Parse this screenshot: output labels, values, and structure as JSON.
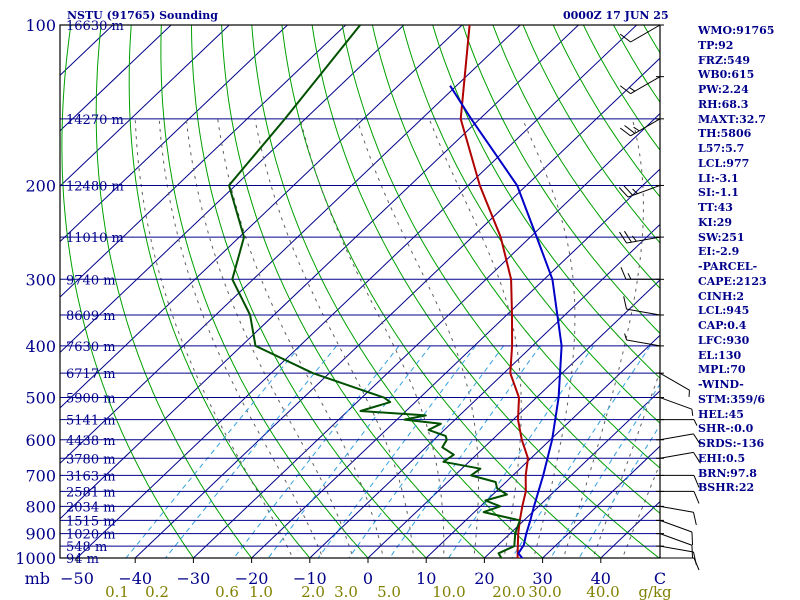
{
  "header": {
    "station": "NSTU (91765) Sounding",
    "time": "0000Z 17 JUN 25"
  },
  "indices": [
    "WMO:91765",
    "TP:92",
    "FRZ:549",
    "WB0:615",
    "PW:2.24",
    "RH:68.3",
    "MAXT:32.7",
    "TH:5806",
    "L57:5.7",
    "LCL:977",
    "LI:-3.1",
    "SI:-1.1",
    "TT:43",
    "KI:29",
    "SW:251",
    "EI:-2.9",
    "-PARCEL-",
    "CAPE:2123",
    "CINH:2",
    "LCL:945",
    "CAP:0.4",
    "LFC:930",
    "EL:130",
    "MPL:70",
    "-WIND-",
    "STM:359/6",
    "HEL:45",
    "SHR-:0.0",
    "SRDS:-136",
    "EHI:0.5",
    "BRN:97.8",
    "BSHR:22"
  ],
  "colors": {
    "isobar": "#00008b",
    "temperature": "#b00000",
    "dewpoint": "#005000",
    "parcel": "#0000c8",
    "dry_adiabat": "#00a000",
    "mixing_ratio": "#33a0e0",
    "moist_adiabat": "#606060",
    "axis_label": "#808000"
  },
  "chart_data": {
    "type": "line",
    "diagram": "skew-T log-p",
    "y_unit": "mb",
    "x_unit": "°C",
    "pressure_levels": [
      100,
      200,
      300,
      400,
      500,
      600,
      700,
      800,
      900,
      1000
    ],
    "x_ticks": [
      -50,
      -40,
      -30,
      -20,
      -10,
      0,
      10,
      20,
      30,
      40
    ],
    "x_axis_end_label": "C",
    "mixing_ratio_labels": [
      "0.1",
      "0.2",
      "0.6",
      "1.0",
      "2.0",
      "3.0",
      "5.0",
      "10.0",
      "20.0",
      "30.0",
      "40.0"
    ],
    "mixing_ratio_unit": "g/kg",
    "heights": [
      {
        "p": 100,
        "label": "16630 m"
      },
      {
        "p": 150,
        "label": "14270 m"
      },
      {
        "p": 200,
        "label": "12480 m"
      },
      {
        "p": 250,
        "label": "11010 m"
      },
      {
        "p": 300,
        "label": "9740 m"
      },
      {
        "p": 350,
        "label": "8609 m"
      },
      {
        "p": 400,
        "label": "7630 m"
      },
      {
        "p": 450,
        "label": "6717 m"
      },
      {
        "p": 500,
        "label": "5900 m"
      },
      {
        "p": 550,
        "label": "5141 m"
      },
      {
        "p": 600,
        "label": "4438 m"
      },
      {
        "p": 650,
        "label": "3780 m"
      },
      {
        "p": 700,
        "label": "3163 m"
      },
      {
        "p": 750,
        "label": "2581 m"
      },
      {
        "p": 800,
        "label": "2034 m"
      },
      {
        "p": 850,
        "label": "1515 m"
      },
      {
        "p": 900,
        "label": "1020 m"
      },
      {
        "p": 950,
        "label": "548 m"
      },
      {
        "p": 1000,
        "label": "94 m"
      }
    ],
    "series": [
      {
        "key": "temperature",
        "points": [
          [
            1007,
            27
          ],
          [
            1000,
            25.7
          ],
          [
            950,
            23.6
          ],
          [
            900,
            21.4
          ],
          [
            850,
            19.3
          ],
          [
            800,
            17.2
          ],
          [
            750,
            15.1
          ],
          [
            700,
            12.2
          ],
          [
            650,
            9.5
          ],
          [
            600,
            5.1
          ],
          [
            550,
            0.8
          ],
          [
            500,
            -3
          ],
          [
            450,
            -8.9
          ],
          [
            400,
            -13.5
          ],
          [
            350,
            -19.1
          ],
          [
            300,
            -25.7
          ],
          [
            250,
            -35.1
          ],
          [
            200,
            -48
          ],
          [
            150,
            -63.3
          ],
          [
            100,
            -78.7
          ]
        ]
      },
      {
        "key": "dewpoint",
        "points": [
          [
            1007,
            23
          ],
          [
            1000,
            22.9
          ],
          [
            980,
            21.6
          ],
          [
            950,
            23
          ],
          [
            900,
            20.9
          ],
          [
            850,
            19.3
          ],
          [
            820,
            11.6
          ],
          [
            800,
            13.4
          ],
          [
            780,
            9.8
          ],
          [
            760,
            12.4
          ],
          [
            740,
            9.6
          ],
          [
            720,
            8.2
          ],
          [
            700,
            2.8
          ],
          [
            680,
            3.2
          ],
          [
            660,
            -4.4
          ],
          [
            640,
            -3.9
          ],
          [
            620,
            -7.2
          ],
          [
            600,
            -7.8
          ],
          [
            590,
            -8.7
          ],
          [
            575,
            -12.7
          ],
          [
            560,
            -11.7
          ],
          [
            550,
            -18.7
          ],
          [
            540,
            -15.8
          ],
          [
            530,
            -27.8
          ],
          [
            510,
            -24.3
          ],
          [
            500,
            -26.2
          ],
          [
            450,
            -42.8
          ],
          [
            400,
            -57.6
          ],
          [
            350,
            -64.1
          ],
          [
            300,
            -73.6
          ],
          [
            250,
            -79.2
          ],
          [
            200,
            -91.1
          ],
          [
            150,
            -93.5
          ],
          [
            100,
            -97.5
          ]
        ]
      },
      {
        "key": "parcel",
        "points": [
          [
            1007,
            27
          ],
          [
            980,
            25
          ],
          [
            945,
            24.4
          ],
          [
            900,
            22.8
          ],
          [
            850,
            21.1
          ],
          [
            800,
            19.2
          ],
          [
            700,
            15.2
          ],
          [
            600,
            10.3
          ],
          [
            500,
            3.8
          ],
          [
            400,
            -5
          ],
          [
            300,
            -18.6
          ],
          [
            250,
            -28.9
          ],
          [
            200,
            -41.6
          ],
          [
            150,
            -61.5
          ],
          [
            130,
            -71.1
          ]
        ]
      }
    ],
    "wind_barbs": [
      {
        "p": 1000,
        "dir": 90,
        "kt": 10
      },
      {
        "p": 950,
        "dir": 100,
        "kt": 10
      },
      {
        "p": 900,
        "dir": 110,
        "kt": 10
      },
      {
        "p": 850,
        "dir": 110,
        "kt": 10
      },
      {
        "p": 800,
        "dir": 100,
        "kt": 10
      },
      {
        "p": 750,
        "dir": 90,
        "kt": 10
      },
      {
        "p": 700,
        "dir": 90,
        "kt": 10
      },
      {
        "p": 650,
        "dir": 80,
        "kt": 10
      },
      {
        "p": 600,
        "dir": 80,
        "kt": 10
      },
      {
        "p": 550,
        "dir": 90,
        "kt": 5
      },
      {
        "p": 500,
        "dir": 110,
        "kt": 5
      },
      {
        "p": 450,
        "dir": 120,
        "kt": 5
      },
      {
        "p": 400,
        "dir": 280,
        "kt": 5
      },
      {
        "p": 350,
        "dir": 280,
        "kt": 10
      },
      {
        "p": 300,
        "dir": 270,
        "kt": 15
      },
      {
        "p": 250,
        "dir": 260,
        "kt": 25
      },
      {
        "p": 200,
        "dir": 250,
        "kt": 25
      },
      {
        "p": 150,
        "dir": 240,
        "kt": 25
      },
      {
        "p": 125,
        "dir": 240,
        "kt": 15
      },
      {
        "p": 100,
        "dir": 240,
        "kt": 10
      }
    ]
  }
}
